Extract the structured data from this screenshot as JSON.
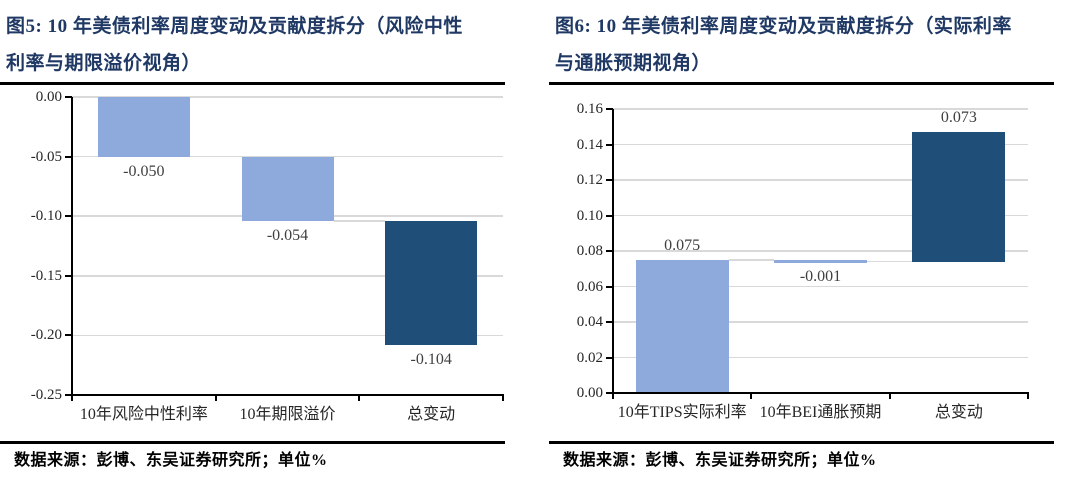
{
  "colors": {
    "title": "#1F3864",
    "bar_light": "#8EA9DB",
    "bar_dark": "#1F4E79",
    "grid": "#D9D9D9",
    "axis": "#000000",
    "value_label": "#3F3F3F",
    "tick_label": "#262626"
  },
  "chart_data": [
    {
      "type": "bar",
      "subtype": "waterfall",
      "fig_label": "图5",
      "title": "图5: 10 年美债利率周度变动及贡献度拆分（风险中性利率与期限溢价视角）",
      "title_lines": [
        "图5: 10 年美债利率周度变动及贡献度拆分（风险中性",
        "利率与期限溢价视角）"
      ],
      "categories": [
        "10年风险中性利率",
        "10年期限溢价",
        "总变动"
      ],
      "values": [
        -0.05,
        -0.054,
        -0.104
      ],
      "bar_ranges": [
        [
          0,
          -0.05
        ],
        [
          -0.05,
          -0.104
        ],
        [
          -0.104,
          -0.208
        ]
      ],
      "value_labels": [
        "-0.050",
        "-0.054",
        "-0.104"
      ],
      "label_positions": [
        "below",
        "below",
        "below"
      ],
      "bar_colors": [
        "#8EA9DB",
        "#8EA9DB",
        "#1F4E79"
      ],
      "connectors": [
        -0.05,
        -0.104
      ],
      "ylim": [
        -0.25,
        0
      ],
      "yticks": [
        0,
        -0.05,
        -0.1,
        -0.15,
        -0.2,
        -0.25
      ],
      "ytick_labels": [
        "0.00",
        "-0.05",
        "-0.10",
        "-0.15",
        "-0.20",
        "-0.25"
      ],
      "grid": true,
      "legend": "none",
      "xlabel": "",
      "ylabel": "",
      "source": "数据来源：彭博、东吴证券研究所；单位%"
    },
    {
      "type": "bar",
      "subtype": "waterfall",
      "fig_label": "图6",
      "title": "图6: 10 年美债利率周度变动及贡献度拆分（实际利率与通胀预期视角）",
      "title_lines": [
        "图6: 10 年美债利率周度变动及贡献度拆分（实际利率",
        "与通胀预期视角）"
      ],
      "categories": [
        "10年TIPS实际利率",
        "10年BEI通胀预期",
        "总变动"
      ],
      "values": [
        0.075,
        -0.001,
        0.073
      ],
      "bar_ranges": [
        [
          0,
          0.075
        ],
        [
          0.074,
          0.075
        ],
        [
          0.074,
          0.147
        ]
      ],
      "value_labels": [
        "0.075",
        "-0.001",
        "0.073"
      ],
      "label_positions": [
        "above",
        "below",
        "above"
      ],
      "bar_colors": [
        "#8EA9DB",
        "#8EA9DB",
        "#1F4E79"
      ],
      "connectors": [
        0.075,
        0.074
      ],
      "ylim": [
        0,
        0.16
      ],
      "yticks": [
        0.16,
        0.14,
        0.12,
        0.1,
        0.08,
        0.06,
        0.04,
        0.02,
        0
      ],
      "ytick_labels": [
        "0.16",
        "0.14",
        "0.12",
        "0.10",
        "0.08",
        "0.06",
        "0.04",
        "0.02",
        "0.00"
      ],
      "grid": true,
      "legend": "none",
      "xlabel": "",
      "ylabel": "",
      "source": "数据来源：彭博、东吴证券研究所；单位%"
    }
  ]
}
